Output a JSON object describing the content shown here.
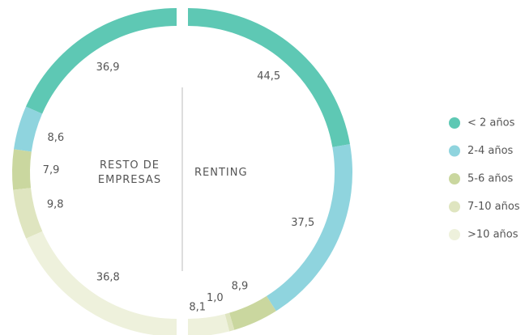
{
  "chart_data": {
    "type": "donut",
    "categories": [
      "< 2 años",
      "2-4 años",
      "5-6 años",
      "7-10 años",
      ">10 años"
    ],
    "colors": [
      "#5ec8b4",
      "#8fd4de",
      "#cad79f",
      "#dfe5c0",
      "#eef1dc"
    ],
    "series": [
      {
        "name": "RESTO DE EMPRESAS",
        "values": [
          36.9,
          8.6,
          7.9,
          9.8,
          36.8
        ],
        "value_labels": [
          "36,9",
          "8,6",
          "7,9",
          "9,8",
          "36,8"
        ]
      },
      {
        "name": "RENTING",
        "values": [
          44.5,
          37.5,
          8.9,
          1.0,
          8.1
        ],
        "value_labels": [
          "44,5",
          "37,5",
          "8,9",
          "1,0",
          "8,1"
        ]
      }
    ]
  }
}
